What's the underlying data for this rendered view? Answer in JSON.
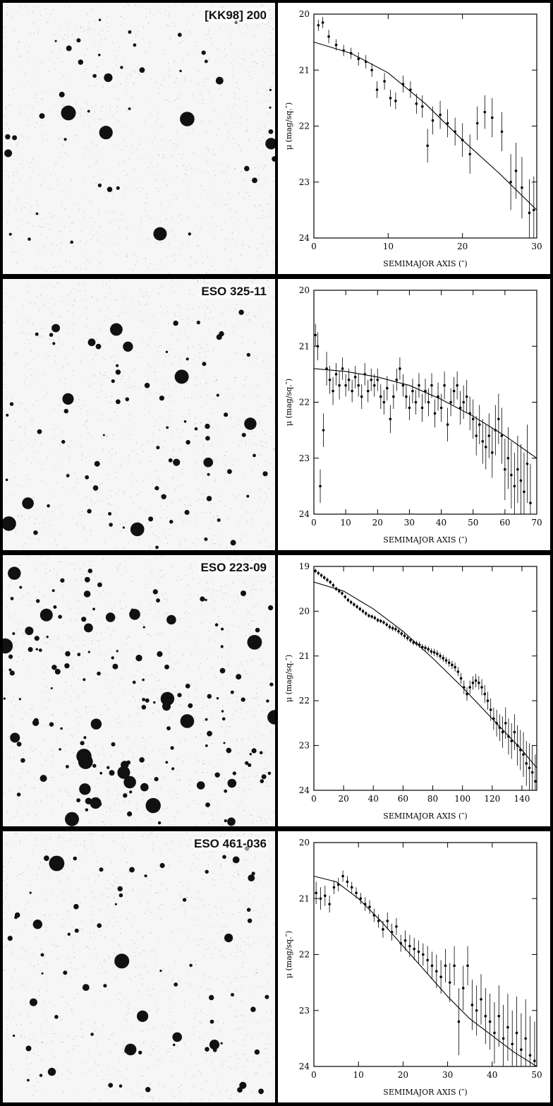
{
  "panels": [
    {
      "label": "[KK98] 200"
    },
    {
      "label": "ESO 325-11"
    },
    {
      "label": "ESO 223-09"
    },
    {
      "label": "ESO 461-036"
    }
  ],
  "chart_data": [
    {
      "type": "scatter",
      "xlabel": "SEMIMAJOR AXIS (″)",
      "ylabel": "μ (mag/sq.″)",
      "xlim": [
        0,
        30
      ],
      "ylim": [
        24,
        20
      ],
      "y_inverted": true,
      "xticks": [
        0,
        10,
        20,
        30
      ],
      "yticks": [
        20,
        21,
        22,
        23,
        24
      ],
      "points": [
        [
          0.6,
          20.2,
          0.1
        ],
        [
          1.2,
          20.15,
          0.1
        ],
        [
          2.0,
          20.4,
          0.12
        ],
        [
          3.0,
          20.55,
          0.1
        ],
        [
          4.0,
          20.65,
          0.1
        ],
        [
          5.0,
          20.7,
          0.1
        ],
        [
          6.0,
          20.8,
          0.12
        ],
        [
          7.0,
          20.85,
          0.12
        ],
        [
          7.8,
          21.0,
          0.12
        ],
        [
          8.5,
          21.35,
          0.15
        ],
        [
          9.5,
          21.2,
          0.15
        ],
        [
          10.3,
          21.5,
          0.15
        ],
        [
          11.0,
          21.55,
          0.15
        ],
        [
          12.0,
          21.25,
          0.15
        ],
        [
          13.0,
          21.35,
          0.15
        ],
        [
          13.8,
          21.6,
          0.18
        ],
        [
          14.6,
          21.65,
          0.2
        ],
        [
          15.3,
          22.35,
          0.3
        ],
        [
          16.0,
          21.9,
          0.25
        ],
        [
          17.0,
          21.8,
          0.25
        ],
        [
          18.0,
          21.95,
          0.25
        ],
        [
          19.0,
          22.1,
          0.25
        ],
        [
          20.0,
          22.25,
          0.3
        ],
        [
          21.0,
          22.5,
          0.35
        ],
        [
          22.0,
          21.95,
          0.3
        ],
        [
          23.0,
          21.75,
          0.3
        ],
        [
          24.0,
          21.85,
          0.35
        ],
        [
          25.3,
          22.1,
          0.35
        ],
        [
          26.5,
          23.0,
          0.5
        ],
        [
          27.2,
          22.8,
          0.5
        ],
        [
          28.0,
          23.1,
          0.55
        ],
        [
          29.0,
          23.55,
          0.6
        ],
        [
          29.6,
          23.5,
          0.6
        ]
      ],
      "fit": [
        [
          0,
          20.5
        ],
        [
          5,
          20.7
        ],
        [
          10,
          21.05
        ],
        [
          15,
          21.6
        ],
        [
          20,
          22.25
        ],
        [
          25,
          22.85
        ],
        [
          30,
          23.5
        ]
      ]
    },
    {
      "type": "scatter",
      "xlabel": "SEMIMAJOR AXIS (″)",
      "ylabel": "μ (mag/sq.″)",
      "xlim": [
        0,
        70
      ],
      "ylim": [
        24,
        20
      ],
      "y_inverted": true,
      "xticks": [
        0,
        10,
        20,
        30,
        40,
        50,
        60,
        70
      ],
      "yticks": [
        20,
        21,
        22,
        23,
        24
      ],
      "points": [
        [
          0.5,
          20.8,
          0.2
        ],
        [
          1.2,
          21.0,
          0.25
        ],
        [
          2.0,
          23.5,
          0.3
        ],
        [
          3.0,
          22.5,
          0.3
        ],
        [
          4,
          21.4,
          0.3
        ],
        [
          5,
          21.6,
          0.25
        ],
        [
          6,
          21.8,
          0.25
        ],
        [
          7,
          21.5,
          0.2
        ],
        [
          8,
          21.7,
          0.25
        ],
        [
          9,
          21.4,
          0.2
        ],
        [
          10,
          21.7,
          0.2
        ],
        [
          11,
          21.6,
          0.2
        ],
        [
          12,
          21.8,
          0.2
        ],
        [
          13,
          21.55,
          0.2
        ],
        [
          14,
          21.7,
          0.2
        ],
        [
          15,
          21.9,
          0.22
        ],
        [
          16,
          21.5,
          0.2
        ],
        [
          17,
          21.8,
          0.2
        ],
        [
          18,
          21.6,
          0.2
        ],
        [
          19,
          21.7,
          0.2
        ],
        [
          20,
          21.6,
          0.2
        ],
        [
          21,
          21.9,
          0.22
        ],
        [
          22,
          22.0,
          0.22
        ],
        [
          23,
          21.75,
          0.22
        ],
        [
          24,
          22.3,
          0.25
        ],
        [
          25,
          21.9,
          0.22
        ],
        [
          26,
          21.6,
          0.2
        ],
        [
          27,
          21.4,
          0.2
        ],
        [
          28,
          21.7,
          0.2
        ],
        [
          29,
          21.9,
          0.22
        ],
        [
          30,
          22.1,
          0.22
        ],
        [
          31,
          21.8,
          0.22
        ],
        [
          32,
          22.0,
          0.22
        ],
        [
          33,
          21.7,
          0.22
        ],
        [
          34,
          22.1,
          0.25
        ],
        [
          35,
          21.8,
          0.22
        ],
        [
          36,
          22.0,
          0.25
        ],
        [
          37,
          21.7,
          0.22
        ],
        [
          38,
          22.2,
          0.25
        ],
        [
          39,
          21.9,
          0.25
        ],
        [
          40,
          22.1,
          0.25
        ],
        [
          41,
          21.7,
          0.25
        ],
        [
          42,
          22.4,
          0.3
        ],
        [
          43,
          22.0,
          0.25
        ],
        [
          44,
          21.8,
          0.25
        ],
        [
          45,
          21.7,
          0.25
        ],
        [
          46,
          22.1,
          0.3
        ],
        [
          47,
          22.0,
          0.3
        ],
        [
          48,
          21.9,
          0.3
        ],
        [
          49,
          22.2,
          0.3
        ],
        [
          50,
          22.3,
          0.35
        ],
        [
          51,
          22.6,
          0.35
        ],
        [
          52,
          22.4,
          0.35
        ],
        [
          53,
          22.7,
          0.4
        ],
        [
          54,
          22.8,
          0.4
        ],
        [
          55,
          22.6,
          0.4
        ],
        [
          56,
          22.9,
          0.45
        ],
        [
          57,
          22.5,
          0.45
        ],
        [
          58,
          22.3,
          0.45
        ],
        [
          59,
          22.6,
          0.5
        ],
        [
          60,
          23.2,
          0.55
        ],
        [
          61,
          23.0,
          0.55
        ],
        [
          62,
          23.3,
          0.6
        ],
        [
          63,
          23.5,
          0.6
        ],
        [
          64,
          23.2,
          0.6
        ],
        [
          65,
          23.4,
          0.65
        ],
        [
          66,
          23.6,
          0.7
        ],
        [
          67,
          23.1,
          0.7
        ],
        [
          68,
          23.8,
          0.7
        ]
      ],
      "fit": [
        [
          0,
          21.4
        ],
        [
          10,
          21.45
        ],
        [
          20,
          21.55
        ],
        [
          30,
          21.7
        ],
        [
          40,
          21.95
        ],
        [
          50,
          22.25
        ],
        [
          60,
          22.6
        ],
        [
          70,
          23.0
        ]
      ]
    },
    {
      "type": "scatter",
      "xlabel": "SEMIMAJOR AXIS (″)",
      "ylabel": "μ (mag/sq.″)",
      "xlim": [
        0,
        150
      ],
      "ylim": [
        24,
        19
      ],
      "y_inverted": true,
      "xticks": [
        0,
        20,
        40,
        60,
        80,
        100,
        120,
        140
      ],
      "yticks": [
        19,
        20,
        21,
        22,
        23,
        24
      ],
      "points": [
        [
          1,
          19.1,
          0.05
        ],
        [
          3,
          19.15,
          0.05
        ],
        [
          5,
          19.2,
          0.05
        ],
        [
          7,
          19.25,
          0.05
        ],
        [
          9,
          19.3,
          0.05
        ],
        [
          11,
          19.35,
          0.05
        ],
        [
          13,
          19.42,
          0.05
        ],
        [
          15,
          19.5,
          0.05
        ],
        [
          17,
          19.55,
          0.05
        ],
        [
          19,
          19.6,
          0.05
        ],
        [
          21,
          19.68,
          0.05
        ],
        [
          23,
          19.75,
          0.05
        ],
        [
          25,
          19.8,
          0.05
        ],
        [
          27,
          19.85,
          0.05
        ],
        [
          29,
          19.9,
          0.05
        ],
        [
          31,
          19.95,
          0.05
        ],
        [
          33,
          20.0,
          0.05
        ],
        [
          35,
          20.05,
          0.05
        ],
        [
          37,
          20.1,
          0.05
        ],
        [
          39,
          20.12,
          0.05
        ],
        [
          41,
          20.15,
          0.05
        ],
        [
          43,
          20.2,
          0.05
        ],
        [
          45,
          20.22,
          0.05
        ],
        [
          47,
          20.25,
          0.05
        ],
        [
          49,
          20.3,
          0.05
        ],
        [
          51,
          20.35,
          0.06
        ],
        [
          53,
          20.38,
          0.06
        ],
        [
          55,
          20.4,
          0.06
        ],
        [
          57,
          20.45,
          0.06
        ],
        [
          59,
          20.5,
          0.06
        ],
        [
          61,
          20.55,
          0.06
        ],
        [
          63,
          20.6,
          0.06
        ],
        [
          65,
          20.65,
          0.06
        ],
        [
          67,
          20.7,
          0.06
        ],
        [
          69,
          20.72,
          0.06
        ],
        [
          71,
          20.75,
          0.07
        ],
        [
          73,
          20.8,
          0.07
        ],
        [
          75,
          20.82,
          0.07
        ],
        [
          77,
          20.85,
          0.07
        ],
        [
          79,
          20.9,
          0.07
        ],
        [
          81,
          20.92,
          0.08
        ],
        [
          83,
          20.95,
          0.08
        ],
        [
          85,
          21.0,
          0.08
        ],
        [
          87,
          21.05,
          0.08
        ],
        [
          89,
          21.1,
          0.08
        ],
        [
          91,
          21.15,
          0.09
        ],
        [
          93,
          21.2,
          0.09
        ],
        [
          95,
          21.25,
          0.1
        ],
        [
          97,
          21.35,
          0.1
        ],
        [
          99,
          21.5,
          0.12
        ],
        [
          101,
          21.7,
          0.15
        ],
        [
          103,
          21.85,
          0.15
        ],
        [
          105,
          21.7,
          0.15
        ],
        [
          107,
          21.6,
          0.15
        ],
        [
          109,
          21.55,
          0.15
        ],
        [
          111,
          21.6,
          0.15
        ],
        [
          113,
          21.7,
          0.18
        ],
        [
          115,
          21.85,
          0.2
        ],
        [
          117,
          22.0,
          0.2
        ],
        [
          119,
          22.2,
          0.25
        ],
        [
          121,
          22.4,
          0.25
        ],
        [
          123,
          22.5,
          0.3
        ],
        [
          125,
          22.6,
          0.3
        ],
        [
          127,
          22.7,
          0.35
        ],
        [
          129,
          22.5,
          0.35
        ],
        [
          131,
          22.8,
          0.4
        ],
        [
          133,
          22.9,
          0.4
        ],
        [
          135,
          22.7,
          0.4
        ],
        [
          137,
          23.0,
          0.45
        ],
        [
          139,
          23.1,
          0.45
        ],
        [
          141,
          23.2,
          0.5
        ],
        [
          143,
          23.4,
          0.5
        ],
        [
          145,
          23.5,
          0.55
        ],
        [
          147,
          23.6,
          0.6
        ],
        [
          149,
          23.8,
          0.6
        ]
      ],
      "fit": [
        [
          0,
          19.35
        ],
        [
          20,
          19.55
        ],
        [
          40,
          19.95
        ],
        [
          60,
          20.45
        ],
        [
          80,
          21.05
        ],
        [
          100,
          21.7
        ],
        [
          120,
          22.4
        ],
        [
          140,
          23.1
        ],
        [
          150,
          23.5
        ]
      ]
    },
    {
      "type": "scatter",
      "xlabel": "SEMIMAJOR AXIS (″)",
      "ylabel": "μ (mag/sq.″)",
      "xlim": [
        0,
        50
      ],
      "ylim": [
        24,
        20
      ],
      "y_inverted": true,
      "xticks": [
        0,
        10,
        20,
        30,
        40,
        50
      ],
      "yticks": [
        20,
        21,
        22,
        23,
        24
      ],
      "points": [
        [
          0.5,
          20.9,
          0.2
        ],
        [
          1.5,
          21.0,
          0.2
        ],
        [
          2.5,
          20.95,
          0.18
        ],
        [
          3.5,
          21.1,
          0.15
        ],
        [
          4.5,
          20.8,
          0.12
        ],
        [
          5.5,
          20.75,
          0.12
        ],
        [
          6.5,
          20.6,
          0.1
        ],
        [
          7.5,
          20.7,
          0.1
        ],
        [
          8.5,
          20.8,
          0.1
        ],
        [
          9.5,
          20.9,
          0.1
        ],
        [
          10.5,
          21.0,
          0.1
        ],
        [
          11.5,
          21.1,
          0.12
        ],
        [
          12.5,
          21.15,
          0.12
        ],
        [
          13.5,
          21.3,
          0.12
        ],
        [
          14.5,
          21.4,
          0.12
        ],
        [
          15.5,
          21.55,
          0.15
        ],
        [
          16.5,
          21.4,
          0.15
        ],
        [
          17.5,
          21.6,
          0.15
        ],
        [
          18.5,
          21.5,
          0.15
        ],
        [
          19.5,
          21.8,
          0.15
        ],
        [
          20.5,
          21.75,
          0.18
        ],
        [
          21.5,
          21.85,
          0.2
        ],
        [
          22.5,
          21.9,
          0.2
        ],
        [
          23.5,
          21.95,
          0.2
        ],
        [
          24.5,
          22.0,
          0.2
        ],
        [
          25.5,
          22.1,
          0.25
        ],
        [
          26.5,
          22.2,
          0.25
        ],
        [
          27.5,
          22.3,
          0.3
        ],
        [
          28.5,
          22.4,
          0.3
        ],
        [
          29.5,
          22.2,
          0.3
        ],
        [
          30.5,
          22.5,
          0.35
        ],
        [
          31.5,
          22.2,
          0.35
        ],
        [
          32.5,
          23.2,
          0.6
        ],
        [
          33.5,
          22.6,
          0.4
        ],
        [
          34.5,
          22.2,
          0.35
        ],
        [
          35.5,
          22.9,
          0.45
        ],
        [
          36.5,
          23.0,
          0.45
        ],
        [
          37.5,
          22.8,
          0.45
        ],
        [
          38.5,
          23.1,
          0.5
        ],
        [
          39.5,
          23.2,
          0.5
        ],
        [
          40.5,
          23.4,
          0.55
        ],
        [
          41.5,
          23.1,
          0.55
        ],
        [
          42.5,
          23.5,
          0.6
        ],
        [
          43.5,
          23.3,
          0.6
        ],
        [
          44.5,
          23.6,
          0.6
        ],
        [
          45.5,
          23.4,
          0.65
        ],
        [
          46.5,
          23.7,
          0.65
        ],
        [
          47.5,
          23.5,
          0.7
        ],
        [
          48.5,
          23.8,
          0.7
        ],
        [
          49.5,
          23.9,
          0.7
        ]
      ],
      "fit": [
        [
          0,
          20.6
        ],
        [
          5,
          20.7
        ],
        [
          10,
          21.0
        ],
        [
          15,
          21.4
        ],
        [
          20,
          21.85
        ],
        [
          25,
          22.3
        ],
        [
          30,
          22.75
        ],
        [
          35,
          23.15
        ],
        [
          40,
          23.45
        ],
        [
          45,
          23.75
        ],
        [
          50,
          24.0
        ]
      ]
    }
  ]
}
